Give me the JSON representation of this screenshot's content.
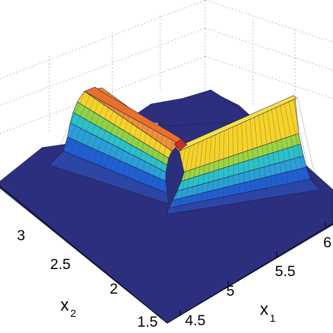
{
  "chart_data": {
    "type": "surface",
    "title": "",
    "x1_axis": {
      "label": "x",
      "label_subscript": "1",
      "ticks": [
        "4.5",
        "5",
        "5.5",
        "6"
      ],
      "range": [
        4.5,
        6.0
      ]
    },
    "x2_axis": {
      "label": "x",
      "label_subscript": "2",
      "ticks": [
        "1.5",
        "2",
        "2.5",
        "3"
      ],
      "range": [
        1.5,
        3.0
      ]
    },
    "z_axis": {
      "label": "",
      "ticks": []
    },
    "grid": true,
    "colormap": "jet",
    "surface": {
      "shape": "V-shaped ridge with two arms meeting at a peak near the center",
      "peak_x1": 5.2,
      "peak_x2": 2.6,
      "arm_along_x1_height": 0.6,
      "arm_along_x2_height": 0.75,
      "peak_height": 0.85
    },
    "colors": {
      "floor": "#2b2f7e",
      "blue": "#1f5fd1",
      "cyan": "#2cc1c9",
      "yellow": "#f5d32b",
      "orange": "#f0913a",
      "red": "#d42a25"
    }
  }
}
